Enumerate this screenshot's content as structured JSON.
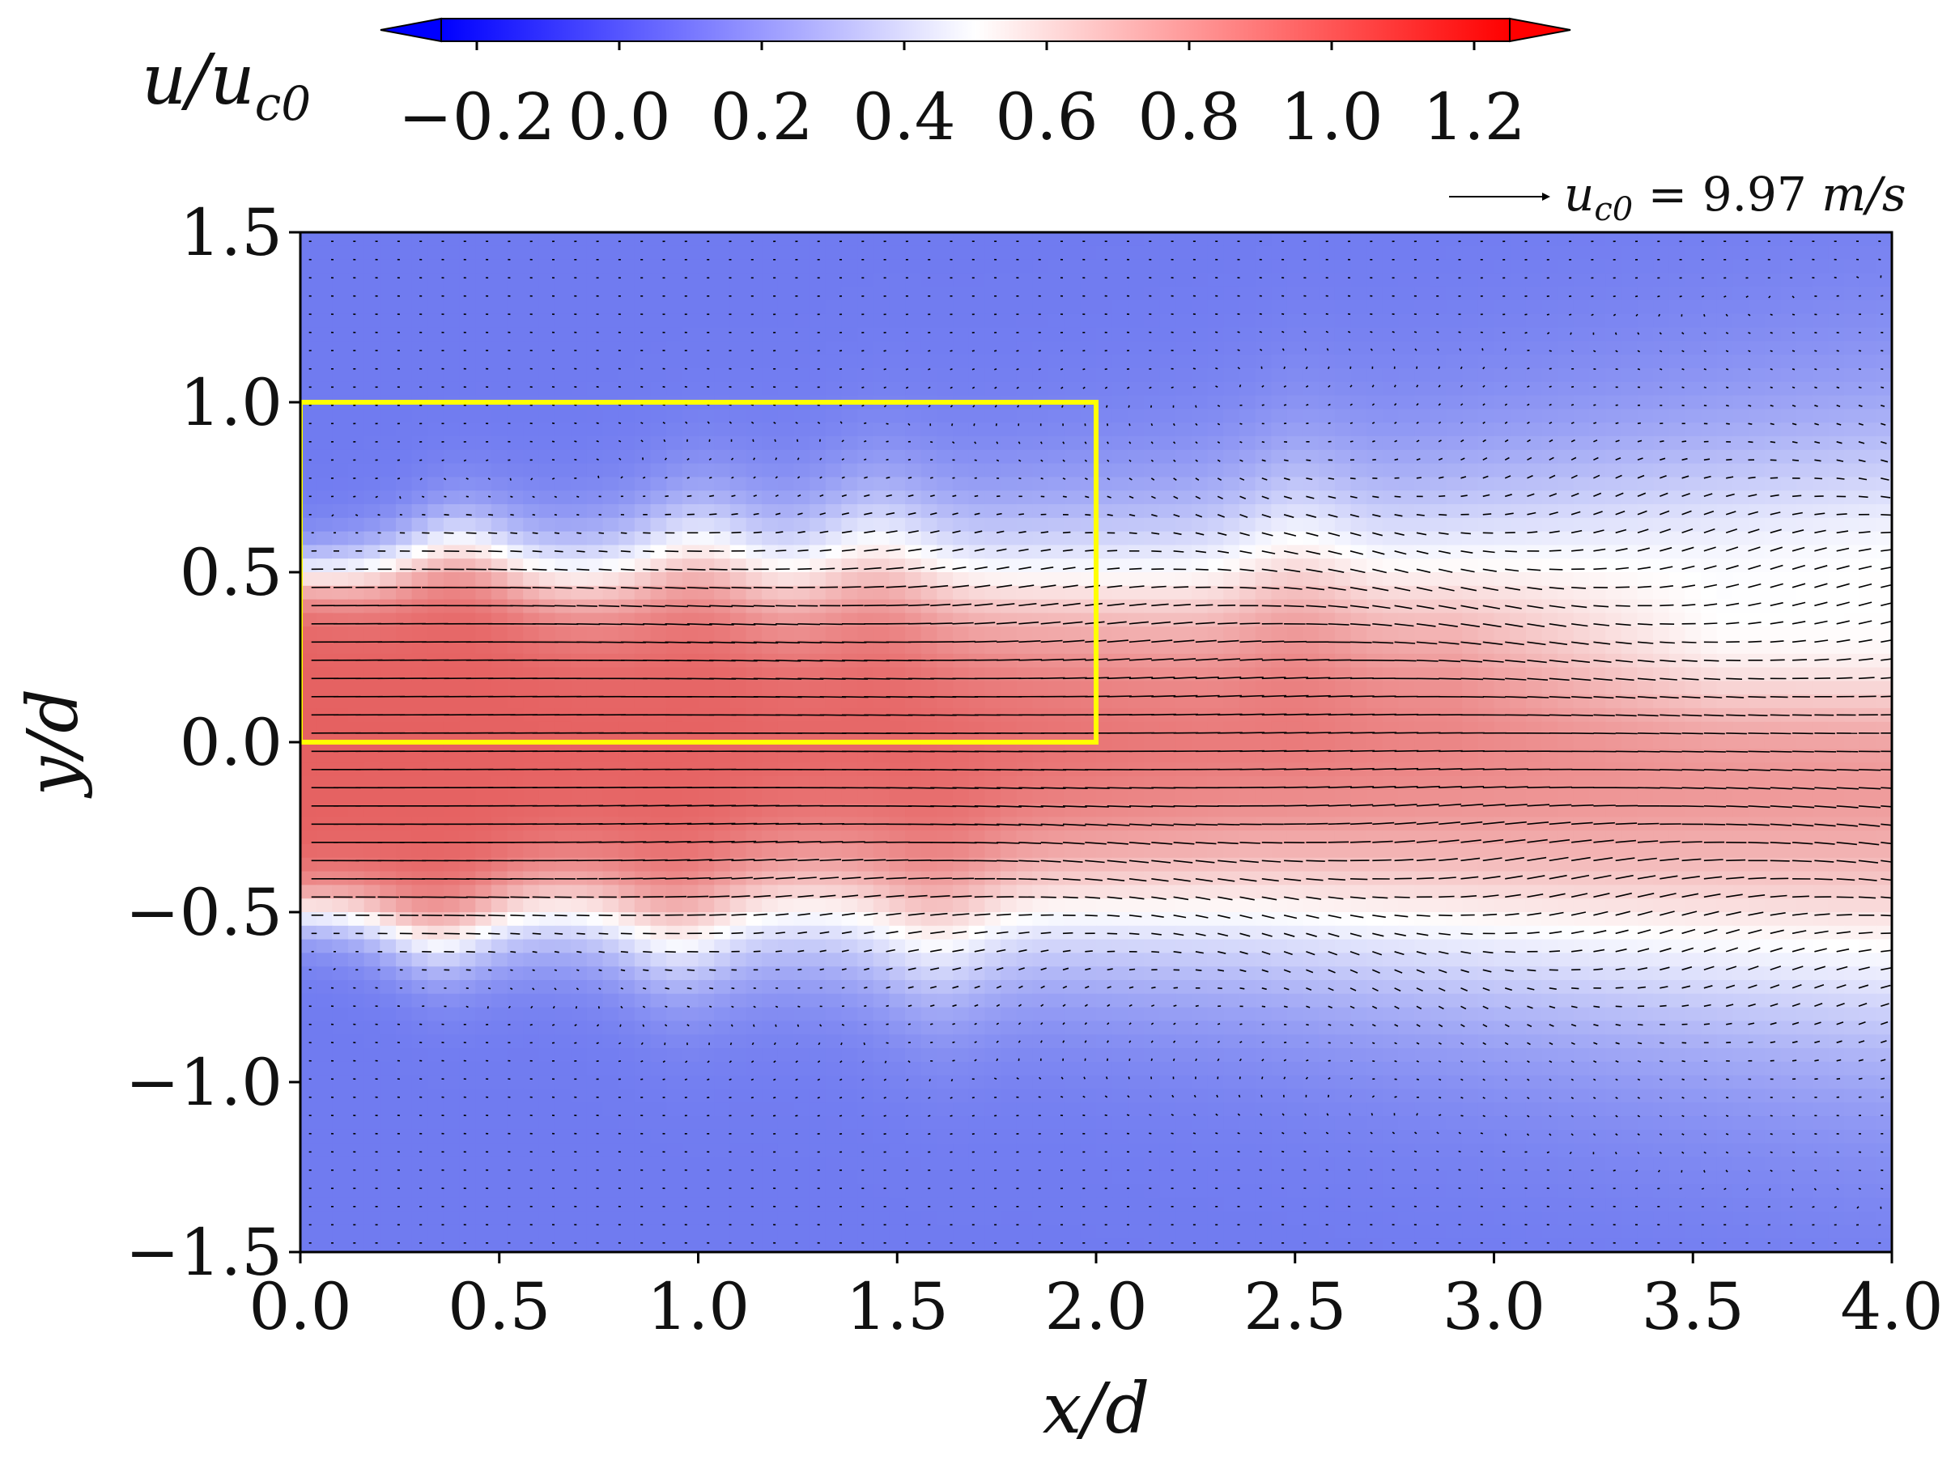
{
  "chart_data": {
    "type": "heatmap",
    "title": "",
    "xlabel": "x/d",
    "ylabel": "y/d",
    "xlim": [
      0.0,
      4.0
    ],
    "ylim": [
      -1.5,
      1.5
    ],
    "x_ticks": [
      "0.0",
      "0.5",
      "1.0",
      "1.5",
      "2.0",
      "2.5",
      "3.0",
      "3.5",
      "4.0"
    ],
    "x_tick_values": [
      0.0,
      0.5,
      1.0,
      1.5,
      2.0,
      2.5,
      3.0,
      3.5,
      4.0
    ],
    "y_ticks": [
      "1.5",
      "1.0",
      "0.5",
      "0.0",
      "−0.5",
      "−1.0",
      "−1.5"
    ],
    "y_tick_values": [
      1.5,
      1.0,
      0.5,
      0.0,
      -0.5,
      -1.0,
      -1.5
    ],
    "colorbar": {
      "label_base": "u/u",
      "label_sub": "c0",
      "range": [
        -0.25,
        1.25
      ],
      "ticks": [
        "−0.2",
        "0.0",
        "0.2",
        "0.4",
        "0.6",
        "0.8",
        "1.0",
        "1.2"
      ],
      "tick_values": [
        -0.2,
        0.0,
        0.2,
        0.4,
        0.6,
        0.8,
        1.0,
        1.2
      ],
      "colormap": "bwr",
      "colors": {
        "low": "#0000ff",
        "mid": "#ffffff",
        "high": "#ff0000"
      },
      "extend": "both"
    },
    "reference_vector": {
      "label_base": "u",
      "label_sub": "c0",
      "label_value": " = 9.97 ",
      "label_unit": "m/s",
      "magnitude": 9.97
    },
    "highlight_box": {
      "x": [
        0.0,
        2.0
      ],
      "y": [
        0.0,
        1.0
      ],
      "color": "#ffff00"
    },
    "jet": {
      "core_value": 1.05,
      "ambient_value": -0.05,
      "shear_layer_y_upper": 0.5,
      "shear_layer_y_lower": -0.5,
      "upper_bumps_x": [
        0.4,
        1.0,
        1.45,
        2.5
      ],
      "lower_bumps_x": [
        0.35,
        0.95,
        1.6
      ],
      "breakdown_start_x": 2.4,
      "annotation": ""
    },
    "grid": false,
    "legend": "none"
  }
}
